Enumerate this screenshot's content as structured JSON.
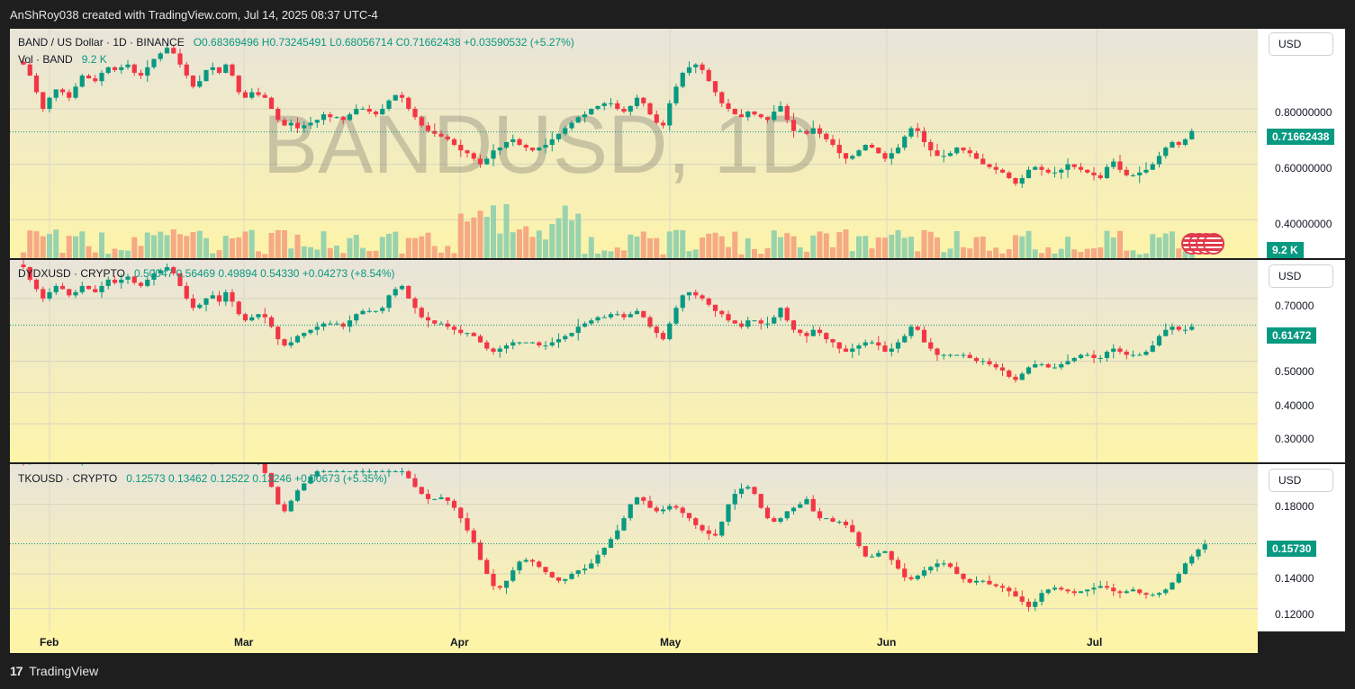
{
  "header": {
    "text": "AnShRoy038 created with TradingView.com, Jul 14, 2025 08:37 UTC-4"
  },
  "footer": {
    "brand": "TradingView",
    "logo_glyph": "17"
  },
  "time_axis": {
    "months": [
      "Feb",
      "Mar",
      "Apr",
      "May",
      "Jun",
      "Jul"
    ]
  },
  "colors": {
    "up": "#089981",
    "down": "#f23645",
    "vol_up": "#8ecfae",
    "vol_down": "#f4a17f"
  },
  "panes": [
    {
      "symbol_line": "BAND / US Dollar · 1D · BINANCE",
      "ohlc_line": "O0.68369496  H0.73245491  L0.68056714  C0.71662438  +0.03590532 (+5.27%)",
      "vol_label": "Vol · BAND",
      "vol_value": "9.2 K",
      "watermark": "BANDUSD, 1D",
      "currency": "USD",
      "price_tag": "0.71662438",
      "vol_tag": "9.2 K",
      "ticks": [
        "0.80000000",
        "0.60000000",
        "0.40000000"
      ]
    },
    {
      "symbol_line": "DYDXUSD · CRYPTO",
      "ohlc_line": "0.50047  0.56469  0.49894  0.54330  +0.04273 (+8.54%)",
      "currency": "USD",
      "price_tag": "0.61472",
      "ticks": [
        "0.70000",
        "0.50000",
        "0.40000",
        "0.30000"
      ]
    },
    {
      "symbol_line": "TKOUSD · CRYPTO",
      "ohlc_line": "0.12573  0.13462  0.12522  0.13246  +0.00673 (+5.35%)",
      "currency": "USD",
      "price_tag": "0.15730",
      "ticks": [
        "0.18000",
        "0.14000",
        "0.12000"
      ]
    }
  ],
  "chart_data": [
    {
      "type": "candlestick",
      "title": "BAND / US Dollar · 1D · BINANCE",
      "ylim": [
        0.3,
        1.05
      ],
      "y_ticks": [
        0.8,
        0.6,
        0.4
      ],
      "last_close": 0.71662438,
      "x_range": [
        "2025-01-27",
        "2025-07-14"
      ],
      "x_ticks": [
        "Feb",
        "Mar",
        "Apr",
        "May",
        "Jun",
        "Jul"
      ],
      "close_series": [
        0.96,
        0.92,
        0.86,
        0.8,
        0.84,
        0.87,
        0.86,
        0.84,
        0.88,
        0.92,
        0.91,
        0.9,
        0.93,
        0.95,
        0.94,
        0.95,
        0.96,
        0.93,
        0.92,
        0.95,
        0.98,
        1.0,
        1.02,
        1.0,
        0.96,
        0.92,
        0.88,
        0.9,
        0.94,
        0.95,
        0.93,
        0.96,
        0.92,
        0.86,
        0.84,
        0.86,
        0.85,
        0.84,
        0.8,
        0.76,
        0.74,
        0.75,
        0.73,
        0.74,
        0.75,
        0.76,
        0.78,
        0.77,
        0.77,
        0.76,
        0.78,
        0.8,
        0.8,
        0.79,
        0.78,
        0.8,
        0.83,
        0.85,
        0.84,
        0.8,
        0.77,
        0.74,
        0.72,
        0.71,
        0.7,
        0.69,
        0.67,
        0.65,
        0.64,
        0.62,
        0.6,
        0.62,
        0.65,
        0.66,
        0.68,
        0.69,
        0.67,
        0.66,
        0.65,
        0.66,
        0.67,
        0.69,
        0.71,
        0.73,
        0.75,
        0.77,
        0.78,
        0.8,
        0.81,
        0.82,
        0.82,
        0.8,
        0.79,
        0.81,
        0.84,
        0.82,
        0.78,
        0.75,
        0.74,
        0.82,
        0.88,
        0.93,
        0.95,
        0.96,
        0.94,
        0.9,
        0.86,
        0.82,
        0.8,
        0.78,
        0.77,
        0.79,
        0.78,
        0.77,
        0.76,
        0.79,
        0.81,
        0.76,
        0.72,
        0.72,
        0.71,
        0.73,
        0.71,
        0.69,
        0.67,
        0.64,
        0.62,
        0.63,
        0.65,
        0.67,
        0.66,
        0.64,
        0.62,
        0.64,
        0.66,
        0.7,
        0.73,
        0.72,
        0.68,
        0.65,
        0.63,
        0.63,
        0.64,
        0.66,
        0.65,
        0.64,
        0.62,
        0.6,
        0.59,
        0.58,
        0.57,
        0.55,
        0.53,
        0.55,
        0.58,
        0.59,
        0.58,
        0.57,
        0.57,
        0.58,
        0.6,
        0.59,
        0.58,
        0.57,
        0.56,
        0.55,
        0.59,
        0.61,
        0.58,
        0.56,
        0.56,
        0.57,
        0.58,
        0.6,
        0.63,
        0.66,
        0.68,
        0.67,
        0.69,
        0.72
      ]
    },
    {
      "type": "candlestick",
      "title": "DYDXUSD · CRYPTO",
      "ylim": [
        0.2,
        0.8
      ],
      "y_ticks": [
        0.7,
        0.5,
        0.4,
        0.3
      ],
      "last_close": 0.61472,
      "x_range": [
        "2025-01-27",
        "2025-07-14"
      ],
      "x_ticks": [
        "Feb",
        "Mar",
        "Apr",
        "May",
        "Jun",
        "Jul"
      ],
      "close_series": [
        0.8,
        0.76,
        0.73,
        0.7,
        0.72,
        0.74,
        0.73,
        0.71,
        0.72,
        0.74,
        0.73,
        0.72,
        0.74,
        0.76,
        0.75,
        0.76,
        0.77,
        0.75,
        0.74,
        0.76,
        0.78,
        0.79,
        0.8,
        0.78,
        0.74,
        0.7,
        0.67,
        0.68,
        0.7,
        0.71,
        0.69,
        0.72,
        0.69,
        0.65,
        0.63,
        0.64,
        0.65,
        0.64,
        0.61,
        0.57,
        0.55,
        0.56,
        0.58,
        0.59,
        0.6,
        0.61,
        0.62,
        0.62,
        0.62,
        0.61,
        0.63,
        0.65,
        0.66,
        0.66,
        0.66,
        0.67,
        0.71,
        0.73,
        0.74,
        0.7,
        0.67,
        0.64,
        0.63,
        0.62,
        0.62,
        0.61,
        0.6,
        0.59,
        0.59,
        0.58,
        0.56,
        0.54,
        0.53,
        0.54,
        0.55,
        0.56,
        0.56,
        0.56,
        0.56,
        0.55,
        0.55,
        0.56,
        0.57,
        0.58,
        0.59,
        0.61,
        0.62,
        0.63,
        0.64,
        0.64,
        0.65,
        0.65,
        0.64,
        0.65,
        0.66,
        0.64,
        0.61,
        0.59,
        0.57,
        0.62,
        0.67,
        0.71,
        0.72,
        0.71,
        0.7,
        0.68,
        0.66,
        0.65,
        0.63,
        0.62,
        0.61,
        0.63,
        0.63,
        0.62,
        0.62,
        0.64,
        0.67,
        0.63,
        0.6,
        0.59,
        0.58,
        0.6,
        0.59,
        0.57,
        0.56,
        0.54,
        0.53,
        0.54,
        0.55,
        0.56,
        0.56,
        0.55,
        0.53,
        0.54,
        0.56,
        0.58,
        0.61,
        0.6,
        0.56,
        0.54,
        0.52,
        0.52,
        0.52,
        0.52,
        0.52,
        0.51,
        0.5,
        0.5,
        0.49,
        0.48,
        0.47,
        0.45,
        0.44,
        0.46,
        0.48,
        0.49,
        0.49,
        0.48,
        0.48,
        0.49,
        0.5,
        0.51,
        0.52,
        0.52,
        0.51,
        0.51,
        0.53,
        0.54,
        0.53,
        0.52,
        0.52,
        0.52,
        0.53,
        0.55,
        0.58,
        0.6,
        0.61,
        0.6,
        0.6,
        0.61
      ]
    },
    {
      "type": "candlestick",
      "title": "TKOUSD · CRYPTO",
      "ylim": [
        0.11,
        0.2
      ],
      "y_ticks": [
        0.18,
        0.14,
        0.12
      ],
      "last_close": 0.1573,
      "x_range": [
        "2025-01-27",
        "2025-07-14"
      ],
      "x_ticks": [
        "Feb",
        "Mar",
        "Apr",
        "May",
        "Jun",
        "Jul"
      ],
      "close_series": [
        0.205,
        0.205,
        0.205,
        0.205,
        0.205,
        0.205,
        0.205,
        0.205,
        0.205,
        0.205,
        0.205,
        0.205,
        0.205,
        0.205,
        0.205,
        0.205,
        0.205,
        0.205,
        0.205,
        0.205,
        0.205,
        0.205,
        0.205,
        0.205,
        0.205,
        0.205,
        0.205,
        0.205,
        0.205,
        0.205,
        0.205,
        0.205,
        0.205,
        0.205,
        0.205,
        0.205,
        0.205,
        0.198,
        0.19,
        0.18,
        0.176,
        0.182,
        0.188,
        0.192,
        0.196,
        0.199,
        0.199,
        0.199,
        0.199,
        0.199,
        0.199,
        0.199,
        0.199,
        0.199,
        0.199,
        0.199,
        0.199,
        0.199,
        0.199,
        0.195,
        0.19,
        0.186,
        0.183,
        0.183,
        0.184,
        0.182,
        0.178,
        0.172,
        0.165,
        0.158,
        0.148,
        0.14,
        0.133,
        0.132,
        0.136,
        0.142,
        0.147,
        0.148,
        0.147,
        0.144,
        0.141,
        0.138,
        0.136,
        0.137,
        0.14,
        0.142,
        0.143,
        0.146,
        0.151,
        0.155,
        0.16,
        0.165,
        0.172,
        0.18,
        0.184,
        0.182,
        0.178,
        0.176,
        0.177,
        0.179,
        0.178,
        0.175,
        0.172,
        0.168,
        0.165,
        0.163,
        0.162,
        0.17,
        0.18,
        0.186,
        0.189,
        0.19,
        0.186,
        0.178,
        0.172,
        0.17,
        0.172,
        0.176,
        0.178,
        0.18,
        0.183,
        0.176,
        0.172,
        0.172,
        0.17,
        0.17,
        0.168,
        0.164,
        0.156,
        0.15,
        0.15,
        0.152,
        0.153,
        0.148,
        0.143,
        0.138,
        0.137,
        0.139,
        0.142,
        0.144,
        0.146,
        0.146,
        0.144,
        0.14,
        0.137,
        0.135,
        0.136,
        0.136,
        0.134,
        0.133,
        0.132,
        0.13,
        0.127,
        0.124,
        0.121,
        0.124,
        0.129,
        0.131,
        0.132,
        0.131,
        0.13,
        0.129,
        0.13,
        0.131,
        0.132,
        0.133,
        0.132,
        0.13,
        0.129,
        0.13,
        0.131,
        0.129,
        0.128,
        0.128,
        0.129,
        0.131,
        0.135,
        0.14,
        0.146,
        0.15,
        0.154,
        0.157
      ]
    }
  ]
}
